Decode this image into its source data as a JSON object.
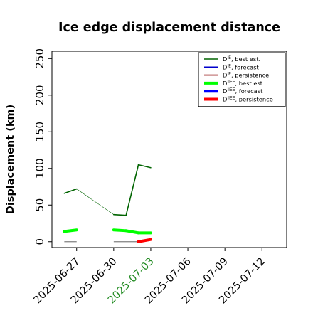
{
  "chart_data": {
    "type": "line",
    "title": "Ice edge displacement distance",
    "ylabel": "Displacement (km)",
    "xlabel": "",
    "xlim": [
      "2025-06-25",
      "2025-07-14"
    ],
    "ylim": [
      -8,
      260
    ],
    "yticks": [
      0,
      50,
      100,
      150,
      200,
      250
    ],
    "xticks": [
      {
        "label": "2025-06-27",
        "date": "2025-06-27",
        "color": "#000000"
      },
      {
        "label": "2025-06-30",
        "date": "2025-06-30",
        "color": "#000000"
      },
      {
        "label": "2025-07-03",
        "date": "2025-07-03",
        "color": "#228b22"
      },
      {
        "label": "2025-07-06",
        "date": "2025-07-06",
        "color": "#000000"
      },
      {
        "label": "2025-07-09",
        "date": "2025-07-09",
        "color": "#000000"
      },
      {
        "label": "2025-07-12",
        "date": "2025-07-12",
        "color": "#000000"
      }
    ],
    "legend_position": "top-right",
    "series": [
      {
        "name": "D^IE, best est.",
        "sup": "IE",
        "suffix": ", best est.",
        "color": "#006400",
        "width": 1.6,
        "x": [
          "2025-06-26",
          "2025-06-27",
          "2025-06-30",
          "2025-07-01",
          "2025-07-02",
          "2025-07-03"
        ],
        "y": [
          66,
          72,
          37,
          36,
          105,
          101
        ]
      },
      {
        "name": "D^IE, forecast",
        "sup": "IE",
        "suffix": ", forecast",
        "color": "#0000cc",
        "width": 1.6,
        "x": [],
        "y": []
      },
      {
        "name": "D^IE, persistence",
        "sup": "IE",
        "suffix": ", persistence",
        "color": "#8b0000",
        "width": 1.6,
        "x": [],
        "y": []
      },
      {
        "name": "D^IIEE, best est.",
        "sup": "IIEE",
        "suffix": ", best est.",
        "color": "#00ff00",
        "width": 4,
        "x": [
          "2025-06-26",
          "2025-06-27",
          "2025-06-30",
          "2025-07-01",
          "2025-07-02",
          "2025-07-03"
        ],
        "y": [
          14,
          16,
          16,
          15,
          12,
          12
        ]
      },
      {
        "name": "D^IIEE, forecast",
        "sup": "IIEE",
        "suffix": ", forecast",
        "color": "#0000ff",
        "width": 4,
        "x": [],
        "y": []
      },
      {
        "name": "D^IIEE, persistence",
        "sup": "IIEE",
        "suffix": ", persistence",
        "color": "#ff0000",
        "width": 4,
        "x": [
          "2025-07-02",
          "2025-07-03"
        ],
        "y": [
          0,
          3
        ]
      }
    ],
    "reference_segments": [
      {
        "color": "#808080",
        "x": [
          "2025-06-26",
          "2025-06-27"
        ],
        "y": [
          0,
          0
        ]
      },
      {
        "color": "#808080",
        "x": [
          "2025-06-30",
          "2025-07-02"
        ],
        "y": [
          0,
          0
        ]
      }
    ]
  }
}
